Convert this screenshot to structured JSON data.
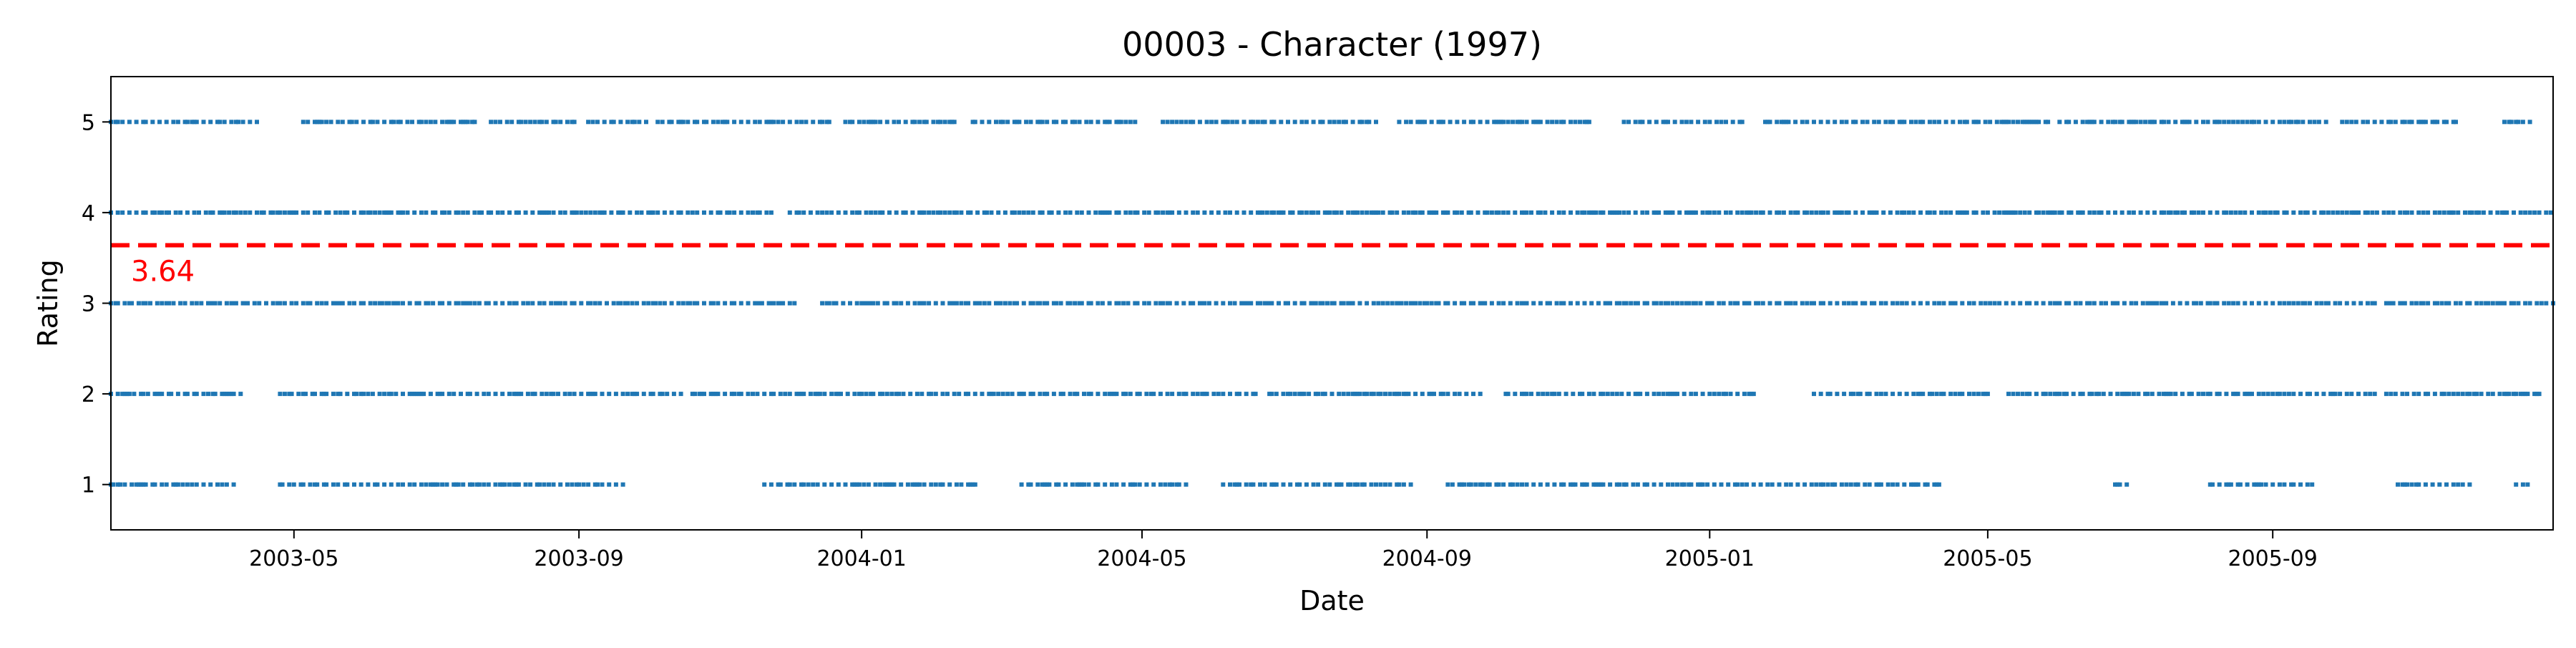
{
  "chart_data": {
    "type": "scatter",
    "title": "00003 - Character (1997)",
    "xlabel": "Date",
    "ylabel": "Rating",
    "xlim": [
      "2003-02-11",
      "2005-12-31"
    ],
    "ylim": [
      0.5,
      5.5
    ],
    "xticks": [
      "2003-05",
      "2003-09",
      "2004-01",
      "2004-05",
      "2004-09",
      "2005-01",
      "2005-05",
      "2005-09"
    ],
    "yticks": [
      1,
      2,
      3,
      4,
      5
    ],
    "point_color": "#1f77b4",
    "mean_line": {
      "value": 3.64,
      "label": "3.64",
      "color": "#ff0000",
      "style": "dashed"
    },
    "grid": false,
    "legend": "none",
    "series": [
      {
        "rating": 5,
        "coverage": [
          [
            "2003-02-11",
            "2003-04-15"
          ],
          [
            "2003-05-05",
            "2003-07-20"
          ],
          [
            "2003-07-25",
            "2003-08-31"
          ],
          [
            "2003-09-05",
            "2003-09-30"
          ],
          [
            "2003-10-05",
            "2003-12-20"
          ],
          [
            "2003-12-25",
            "2004-02-10"
          ],
          [
            "2004-02-18",
            "2004-04-30"
          ],
          [
            "2004-05-10",
            "2004-08-10"
          ],
          [
            "2004-08-20",
            "2004-11-10"
          ],
          [
            "2004-11-25",
            "2005-01-15"
          ],
          [
            "2005-01-25",
            "2005-05-28"
          ],
          [
            "2005-06-01",
            "2005-09-25"
          ],
          [
            "2005-10-01",
            "2005-11-20"
          ],
          [
            "2005-12-10",
            "2005-12-22"
          ]
        ]
      },
      {
        "rating": 4,
        "coverage": [
          [
            "2003-02-11",
            "2003-11-25"
          ],
          [
            "2003-12-01",
            "2005-12-31"
          ]
        ]
      },
      {
        "rating": 3,
        "coverage": [
          [
            "2003-02-11",
            "2003-12-05"
          ],
          [
            "2003-12-15",
            "2005-10-15"
          ],
          [
            "2005-10-20",
            "2005-12-31"
          ]
        ]
      },
      {
        "rating": 2,
        "coverage": [
          [
            "2003-02-11",
            "2003-04-10"
          ],
          [
            "2003-04-25",
            "2003-10-15"
          ],
          [
            "2003-10-20",
            "2004-06-20"
          ],
          [
            "2004-06-25",
            "2004-09-25"
          ],
          [
            "2004-10-05",
            "2005-01-20"
          ],
          [
            "2005-02-15",
            "2005-05-01"
          ],
          [
            "2005-05-10",
            "2005-10-15"
          ],
          [
            "2005-10-20",
            "2005-12-25"
          ]
        ]
      },
      {
        "rating": 1,
        "coverage": [
          [
            "2003-02-11",
            "2003-04-05"
          ],
          [
            "2003-04-25",
            "2003-09-20"
          ],
          [
            "2003-11-20",
            "2004-02-20"
          ],
          [
            "2004-03-10",
            "2004-05-20"
          ],
          [
            "2004-06-05",
            "2004-08-25"
          ],
          [
            "2004-09-10",
            "2005-04-10"
          ],
          [
            "2005-06-25",
            "2005-06-30"
          ],
          [
            "2005-08-05",
            "2005-09-20"
          ],
          [
            "2005-10-25",
            "2005-11-25"
          ],
          [
            "2005-12-15",
            "2005-12-20"
          ]
        ]
      }
    ]
  }
}
